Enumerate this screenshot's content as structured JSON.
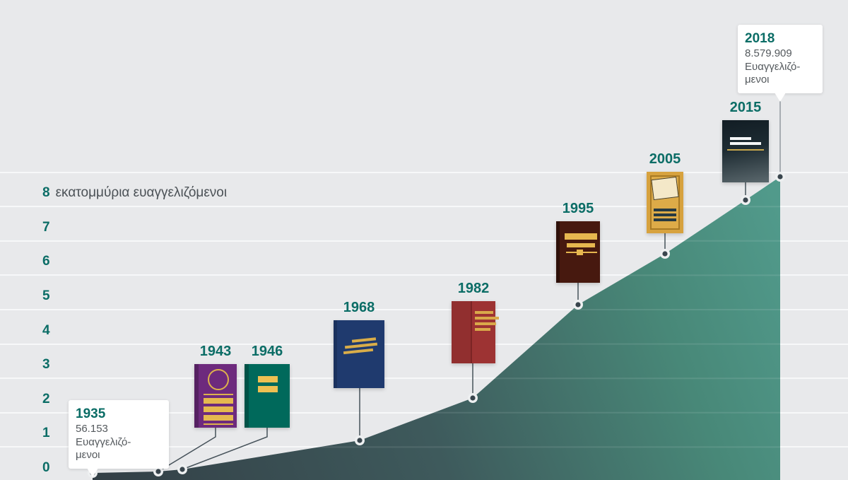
{
  "y_axis": {
    "unit_label": "εκατομμύρια ευαγγελιζόμενοι",
    "ticks": [
      "0",
      "1",
      "2",
      "3",
      "4",
      "5",
      "6",
      "7",
      "8"
    ]
  },
  "milestones": [
    {
      "year": "1943",
      "icon": "purple-book-circle-lines-icon",
      "cover_color": "#6d2a7d"
    },
    {
      "year": "1946",
      "icon": "green-book-two-bars-icon",
      "cover_color": "#00695b"
    },
    {
      "year": "1968",
      "icon": "navy-book-slanted-lines-icon",
      "cover_color": "#1f3a6e"
    },
    {
      "year": "1982",
      "icon": "red-book-spine-lines-icon",
      "cover_color": "#9d3333"
    },
    {
      "year": "1995",
      "icon": "brown-book-title-lines-icon",
      "cover_color": "#47190f"
    },
    {
      "year": "2005",
      "icon": "gold-framed-book-icon",
      "cover_color": "#d7a23e"
    },
    {
      "year": "2015",
      "icon": "dark-gradient-book-icon",
      "cover_color": "#1d2b32"
    }
  ],
  "callouts": {
    "start": {
      "year": "1935",
      "value": "56.153",
      "unit_line1": "Ευαγγελιζό-",
      "unit_line2": "μενοι"
    },
    "end": {
      "year": "2018",
      "value": "8.579.909",
      "unit_line1": "Ευαγγελιζό-",
      "unit_line2": "μενοι"
    }
  },
  "chart_data": {
    "type": "area",
    "x": [
      1935,
      1943,
      1946,
      1968,
      1982,
      1995,
      2005,
      2015,
      2018
    ],
    "series": [
      {
        "name": "Ευαγγελιζόμενοι (εκατομμύρια)",
        "values": [
          0.056,
          0.13,
          0.18,
          1.2,
          2.4,
          5.15,
          6.6,
          8.2,
          8.58
        ]
      }
    ],
    "labeled_points": [
      {
        "year": 1935,
        "label": "56.153 Ευαγγελιζόμενοι"
      },
      {
        "year": 2018,
        "label": "8.579.909 Ευαγγελιζόμενοι"
      }
    ],
    "ylabel": "εκατομμύρια ευαγγελιζόμενοι",
    "ylim": [
      0,
      9
    ],
    "yticks": [
      0,
      1,
      2,
      3,
      4,
      5,
      6,
      7,
      8
    ],
    "grid": true,
    "legend_position": "none",
    "colors": {
      "background": "#e8e9eb",
      "gridline": "#f7f8f9",
      "accent_teal": "#0b6d66",
      "text_dark": "#4b5156",
      "area_gradient_start": "#333f46",
      "area_gradient_end": "#519a8b",
      "connector": "#46525a",
      "dot_center": "#39454d",
      "gold": "#ddb14c"
    }
  }
}
